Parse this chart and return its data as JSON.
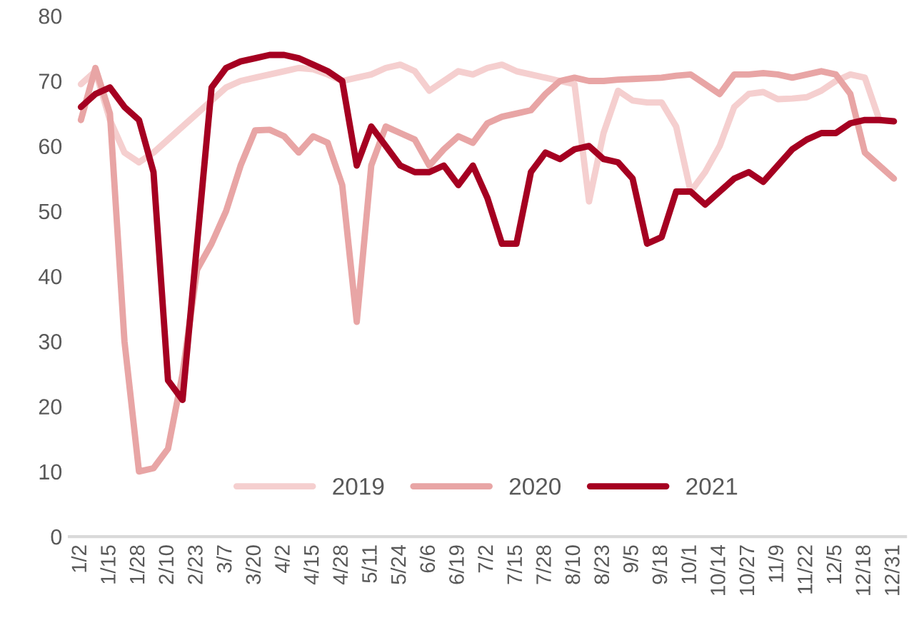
{
  "chart_data": {
    "type": "line",
    "categories": [
      "1/2",
      null,
      "1/15",
      null,
      "1/28",
      null,
      "2/10",
      null,
      "2/23",
      null,
      "3/7",
      null,
      "3/20",
      null,
      "4/2",
      null,
      "4/15",
      null,
      "4/28",
      null,
      "5/11",
      null,
      "5/24",
      null,
      "6/6",
      null,
      "6/19",
      null,
      "7/2",
      null,
      "7/15",
      null,
      "7/28",
      null,
      "8/10",
      null,
      "8/23",
      null,
      "9/5",
      null,
      "9/18",
      null,
      "10/1",
      null,
      "10/14",
      null,
      "10/27",
      null,
      "11/9",
      null,
      "11/22",
      null,
      "12/5",
      null,
      "12/18",
      null,
      "12/31"
    ],
    "series": [
      {
        "name": "2019",
        "color": "#f5cfcf",
        "values": [
          69.5,
          71.5,
          64,
          59,
          57.5,
          59,
          61,
          63,
          65,
          67,
          69,
          70,
          70.5,
          71,
          71.5,
          72,
          71.8,
          71,
          70,
          70.5,
          71,
          72,
          72.5,
          71.5,
          68.5,
          70,
          71.5,
          71,
          72,
          72.5,
          71.5,
          71,
          70.5,
          70,
          69.5,
          51.5,
          62,
          68.5,
          67,
          66.7,
          66.7,
          63,
          53,
          56,
          60,
          66,
          68,
          68.3,
          67.2,
          67.3,
          67.5,
          68.5,
          70,
          71,
          70.5,
          64,
          null
        ]
      },
      {
        "name": "2020",
        "color": "#e8a5a5",
        "values": [
          64,
          72,
          65,
          30,
          10,
          10.5,
          13.5,
          25,
          41,
          45,
          50,
          57,
          62.4,
          62.5,
          61.5,
          59,
          61.5,
          60.5,
          54,
          33,
          57,
          63,
          62,
          61,
          57,
          59.5,
          61.5,
          60.5,
          63.5,
          64.5,
          65,
          65.5,
          68,
          70,
          70.5,
          70,
          70,
          70.2,
          70.3,
          70.4,
          70.5,
          70.8,
          71,
          69.5,
          68,
          71,
          71,
          71.2,
          71,
          70.5,
          71,
          71.5,
          71,
          68,
          59,
          57,
          55
        ]
      },
      {
        "name": "2021",
        "color": "#a50021",
        "values": [
          66,
          68,
          69,
          66,
          64,
          56,
          24,
          21,
          45,
          69,
          72,
          73,
          73.5,
          74,
          74,
          73.5,
          72.5,
          71.5,
          70,
          57,
          63,
          60,
          57,
          56,
          56,
          57,
          54,
          57,
          52,
          45,
          45,
          56,
          59,
          58,
          59.5,
          60,
          58,
          57.5,
          55,
          45,
          46,
          53,
          53,
          51,
          53,
          55,
          56,
          54.5,
          57,
          59.5,
          61,
          62,
          62,
          63.5,
          64,
          64,
          63.8
        ]
      }
    ],
    "ylim": [
      0,
      80
    ],
    "yticks": [
      0,
      10,
      20,
      30,
      40,
      50,
      60,
      70,
      80
    ],
    "grid": false,
    "legend": "bottom",
    "marker": "none",
    "line_style": "solid"
  }
}
